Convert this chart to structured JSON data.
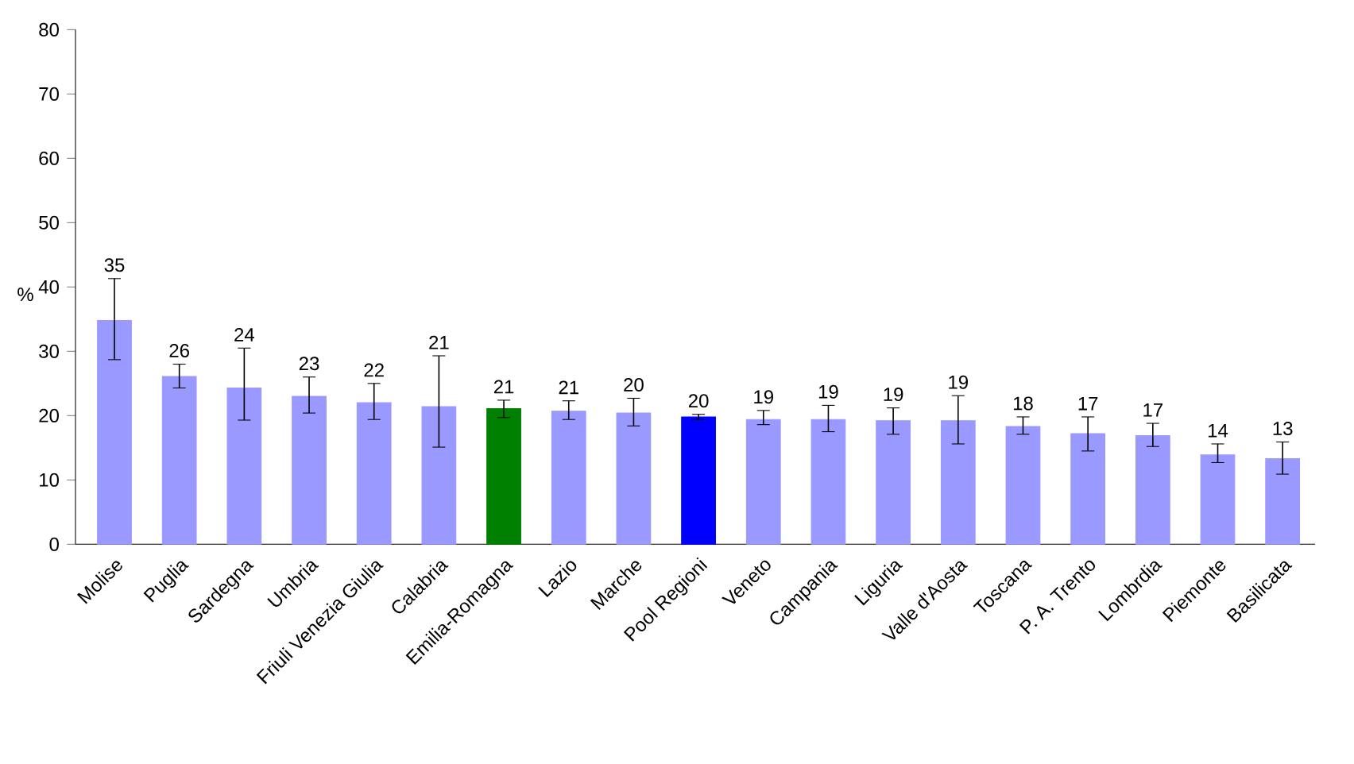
{
  "chart_data": {
    "type": "bar",
    "ylabel": "%",
    "categories": [
      "Molise",
      "Puglia",
      "Sardegna",
      "Umbria",
      "Friuli Venezia Giulia",
      "Calabria",
      "Emilia-Romagna",
      "Lazio",
      "Marche",
      "Pool Regioni",
      "Veneto",
      "Campania",
      "Liguria",
      "Valle d'Aosta",
      "Toscana",
      "P. A. Trento",
      "Lombrdia",
      "Piemonte",
      "Basilicata"
    ],
    "values": [
      34.8,
      26.1,
      24.3,
      23.0,
      22.0,
      21.4,
      21.1,
      20.7,
      20.4,
      19.8,
      19.4,
      19.4,
      19.2,
      19.2,
      18.3,
      17.2,
      16.9,
      13.9,
      13.3
    ],
    "errors": [
      [
        28.7,
        41.3
      ],
      [
        24.3,
        28.0
      ],
      [
        19.3,
        30.5
      ],
      [
        20.4,
        26.0
      ],
      [
        19.4,
        25.0
      ],
      [
        15.1,
        29.3
      ],
      [
        19.7,
        22.4
      ],
      [
        19.4,
        22.3
      ],
      [
        18.4,
        22.7
      ],
      [
        19.4,
        20.2
      ],
      [
        18.6,
        20.8
      ],
      [
        17.5,
        21.6
      ],
      [
        17.1,
        21.2
      ],
      [
        15.6,
        23.1
      ],
      [
        17.1,
        19.8
      ],
      [
        14.5,
        19.8
      ],
      [
        15.2,
        18.8
      ],
      [
        12.7,
        15.6
      ],
      [
        10.9,
        15.9
      ]
    ],
    "value_labels": [
      "35",
      "26",
      "24",
      "23",
      "22",
      "21",
      "21",
      "21",
      "20",
      "20",
      "19",
      "19",
      "19",
      "19",
      "18",
      "17",
      "17",
      "14",
      "13"
    ],
    "colors": [
      "#9999ff",
      "#9999ff",
      "#9999ff",
      "#9999ff",
      "#9999ff",
      "#9999ff",
      "#008000",
      "#9999ff",
      "#9999ff",
      "#0000ff",
      "#9999ff",
      "#9999ff",
      "#9999ff",
      "#9999ff",
      "#9999ff",
      "#9999ff",
      "#9999ff",
      "#9999ff",
      "#9999ff"
    ],
    "ylim": [
      0,
      80
    ],
    "yticks": [
      0,
      10,
      20,
      30,
      40,
      50,
      60,
      70,
      80
    ],
    "grid": false
  }
}
